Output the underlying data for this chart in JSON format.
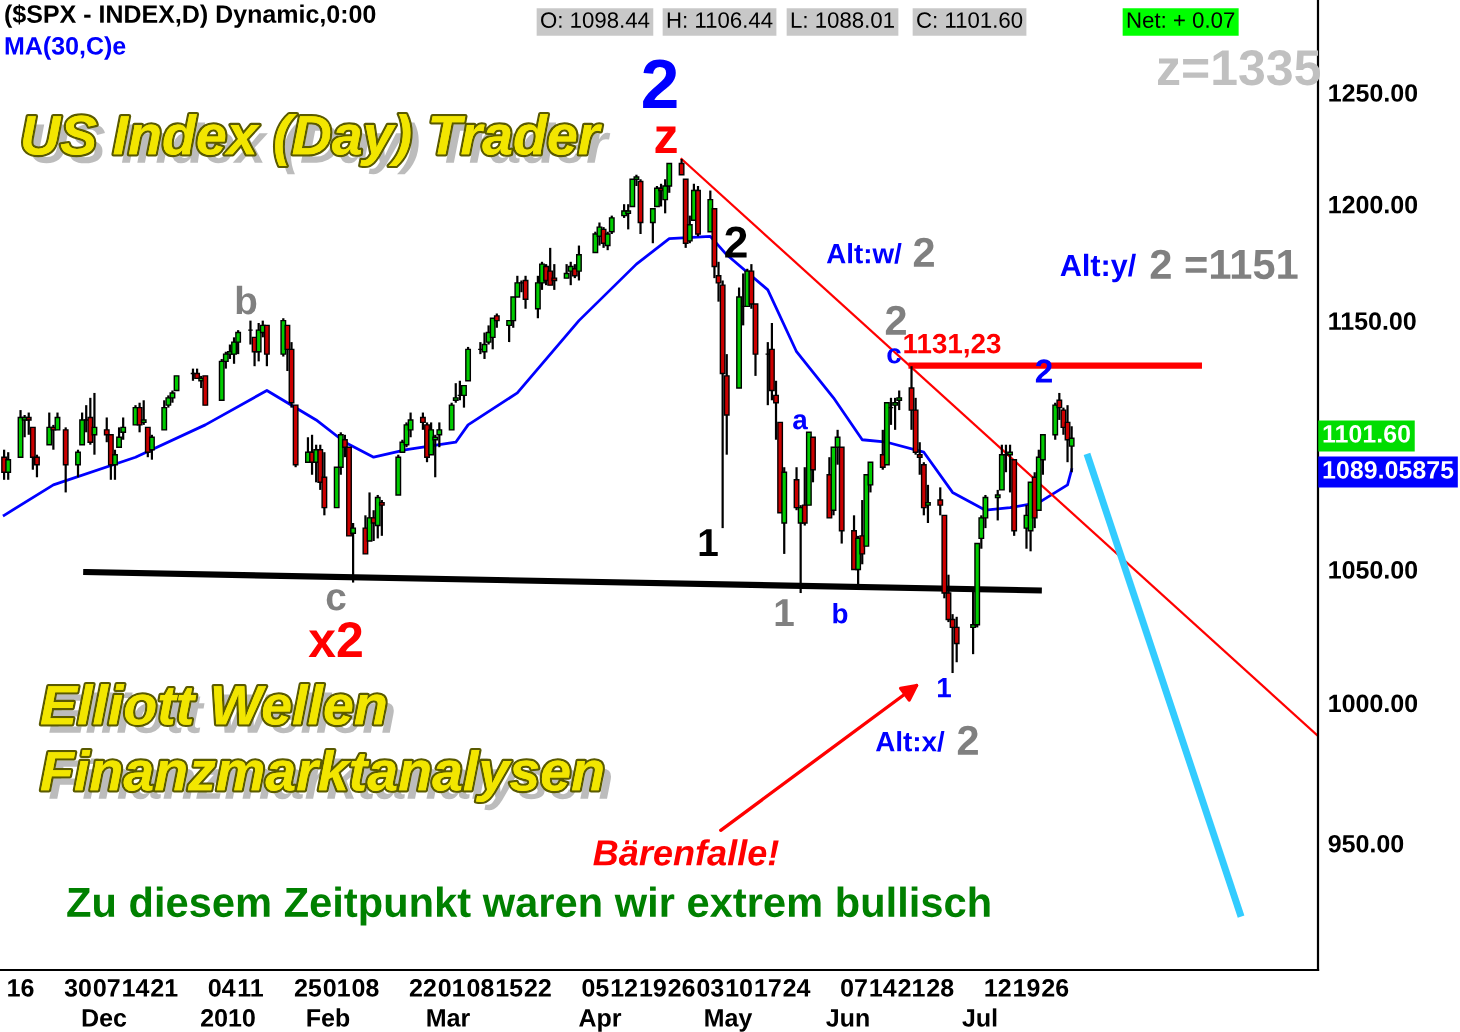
{
  "chart_data": {
    "type": "candlestick",
    "title": "($SPX - INDEX,D) Dynamic,0:00",
    "x": [
      "2009-11-12",
      "2009-11-13",
      "2009-11-16",
      "2009-11-17",
      "2009-11-18",
      "2009-11-19",
      "2009-11-20",
      "2009-11-23",
      "2009-11-24",
      "2009-11-25",
      "2009-11-27",
      "2009-11-30",
      "2009-12-01",
      "2009-12-02",
      "2009-12-03",
      "2009-12-04",
      "2009-12-07",
      "2009-12-08",
      "2009-12-09",
      "2009-12-10",
      "2009-12-11",
      "2009-12-14",
      "2009-12-15",
      "2009-12-16",
      "2009-12-17",
      "2009-12-18",
      "2009-12-21",
      "2009-12-22",
      "2009-12-23",
      "2009-12-24",
      "2009-12-28",
      "2009-12-29",
      "2009-12-30",
      "2009-12-31",
      "2010-01-04",
      "2010-01-05",
      "2010-01-06",
      "2010-01-07",
      "2010-01-08",
      "2010-01-11",
      "2010-01-12",
      "2010-01-13",
      "2010-01-14",
      "2010-01-15",
      "2010-01-19",
      "2010-01-20",
      "2010-01-21",
      "2010-01-22",
      "2010-01-25",
      "2010-01-26",
      "2010-01-27",
      "2010-01-28",
      "2010-01-29",
      "2010-02-01",
      "2010-02-02",
      "2010-02-03",
      "2010-02-04",
      "2010-02-05",
      "2010-02-08",
      "2010-02-09",
      "2010-02-10",
      "2010-02-11",
      "2010-02-12",
      "2010-02-16",
      "2010-02-17",
      "2010-02-18",
      "2010-02-19",
      "2010-02-22",
      "2010-02-23",
      "2010-02-24",
      "2010-02-25",
      "2010-02-26",
      "2010-03-01",
      "2010-03-02",
      "2010-03-03",
      "2010-03-04",
      "2010-03-05",
      "2010-03-08",
      "2010-03-09",
      "2010-03-10",
      "2010-03-11",
      "2010-03-12",
      "2010-03-15",
      "2010-03-16",
      "2010-03-17",
      "2010-03-18",
      "2010-03-19",
      "2010-03-22",
      "2010-03-23",
      "2010-03-24",
      "2010-03-25",
      "2010-03-26",
      "2010-03-29",
      "2010-03-30",
      "2010-03-31",
      "2010-04-01",
      "2010-04-05",
      "2010-04-06",
      "2010-04-07",
      "2010-04-08",
      "2010-04-09",
      "2010-04-12",
      "2010-04-13",
      "2010-04-14",
      "2010-04-15",
      "2010-04-16",
      "2010-04-19",
      "2010-04-20",
      "2010-04-21",
      "2010-04-22",
      "2010-04-23",
      "2010-04-26",
      "2010-04-27",
      "2010-04-28",
      "2010-04-29",
      "2010-04-30",
      "2010-05-03",
      "2010-05-04",
      "2010-05-05",
      "2010-05-06",
      "2010-05-07",
      "2010-05-10",
      "2010-05-11",
      "2010-05-12",
      "2010-05-13",
      "2010-05-14",
      "2010-05-17",
      "2010-05-18",
      "2010-05-19",
      "2010-05-20",
      "2010-05-21",
      "2010-05-24",
      "2010-05-25",
      "2010-05-26",
      "2010-05-27",
      "2010-05-28",
      "2010-06-01",
      "2010-06-02",
      "2010-06-03",
      "2010-06-04",
      "2010-06-07",
      "2010-06-08",
      "2010-06-09",
      "2010-06-10",
      "2010-06-11",
      "2010-06-14",
      "2010-06-15",
      "2010-06-16",
      "2010-06-17",
      "2010-06-18",
      "2010-06-21",
      "2010-06-22",
      "2010-06-23",
      "2010-06-24",
      "2010-06-25",
      "2010-06-28",
      "2010-06-29",
      "2010-06-30",
      "2010-07-01",
      "2010-07-02",
      "2010-07-06",
      "2010-07-07",
      "2010-07-08",
      "2010-07-09",
      "2010-07-12",
      "2010-07-13",
      "2010-07-14",
      "2010-07-15",
      "2010-07-16",
      "2010-07-19",
      "2010-07-20",
      "2010-07-21",
      "2010-07-22",
      "2010-07-23",
      "2010-07-26",
      "2010-07-27",
      "2010-07-28",
      "2010-07-29",
      "2010-07-30"
    ],
    "ohlc": [
      [
        1094,
        1097,
        1085,
        1088
      ],
      [
        1088,
        1096,
        1085,
        1093
      ],
      [
        1094,
        1113,
        1094,
        1110
      ],
      [
        1109,
        1111,
        1102,
        1110
      ],
      [
        1110,
        1112,
        1103,
        1109
      ],
      [
        1106,
        1106,
        1089,
        1094
      ],
      [
        1094,
        1095,
        1086,
        1091
      ],
      [
        1099,
        1112,
        1099,
        1106
      ],
      [
        1106,
        1107,
        1097,
        1105
      ],
      [
        1105,
        1112,
        1105,
        1110
      ],
      [
        1105,
        1106,
        1080,
        1091
      ],
      [
        1091,
        1097,
        1086,
        1096
      ],
      [
        1099,
        1112,
        1099,
        1109
      ],
      [
        1109,
        1115,
        1104,
        1109
      ],
      [
        1110,
        1118,
        1099,
        1100
      ],
      [
        1103,
        1120,
        1095,
        1106
      ],
      [
        1105,
        1110,
        1100,
        1103
      ],
      [
        1103,
        1103,
        1085,
        1091
      ],
      [
        1091,
        1097,
        1085,
        1095
      ],
      [
        1098,
        1106,
        1098,
        1102
      ],
      [
        1104,
        1110,
        1101,
        1106
      ],
      [
        1107,
        1115,
        1107,
        1114
      ],
      [
        1114,
        1116,
        1104,
        1107
      ],
      [
        1108,
        1117,
        1107,
        1109
      ],
      [
        1106,
        1106,
        1094,
        1096
      ],
      [
        1097,
        1103,
        1093,
        1102
      ],
      [
        1105,
        1117,
        1105,
        1114
      ],
      [
        1115,
        1119,
        1114,
        1118
      ],
      [
        1118,
        1121,
        1116,
        1120
      ],
      [
        1121,
        1127,
        1121,
        1127
      ],
      [
        1128,
        1130,
        1125,
        1128
      ],
      [
        1128,
        1130,
        1126,
        1126
      ],
      [
        1125,
        1127,
        1122,
        1126
      ],
      [
        1127,
        1127,
        1115,
        1115
      ],
      [
        1117,
        1134,
        1117,
        1133
      ],
      [
        1133,
        1137,
        1130,
        1136
      ],
      [
        1136,
        1140,
        1134,
        1137
      ],
      [
        1136,
        1143,
        1132,
        1141
      ],
      [
        1141,
        1146,
        1136,
        1145
      ],
      [
        1146,
        1150,
        1140,
        1146
      ],
      [
        1143,
        1143,
        1131,
        1137
      ],
      [
        1137,
        1149,
        1133,
        1146
      ],
      [
        1145,
        1150,
        1143,
        1148
      ],
      [
        1148,
        1148,
        1131,
        1136
      ],
      [
        1136,
        1151,
        1135,
        1150
      ],
      [
        1148,
        1148,
        1129,
        1138
      ],
      [
        1138,
        1141,
        1114,
        1116
      ],
      [
        1115,
        1115,
        1090,
        1091
      ],
      [
        1092,
        1102,
        1092,
        1096
      ],
      [
        1096,
        1103,
        1087,
        1092
      ],
      [
        1092,
        1099,
        1084,
        1097
      ],
      [
        1097,
        1099,
        1081,
        1084
      ],
      [
        1086,
        1096,
        1071,
        1074
      ],
      [
        1074,
        1090,
        1074,
        1090
      ],
      [
        1090,
        1104,
        1087,
        1103
      ],
      [
        1101,
        1103,
        1094,
        1098
      ],
      [
        1098,
        1098,
        1063,
        1063
      ],
      [
        1064,
        1068,
        1045,
        1066
      ],
      [
        1066,
        1071,
        1056,
        1056
      ],
      [
        1061,
        1080,
        1061,
        1070
      ],
      [
        1070,
        1073,
        1061,
        1068
      ],
      [
        1067,
        1079,
        1062,
        1078
      ],
      [
        1076,
        1077,
        1063,
        1075
      ],
      [
        1079,
        1095,
        1079,
        1094
      ],
      [
        1096,
        1101,
        1096,
        1100
      ],
      [
        1099,
        1108,
        1098,
        1107
      ],
      [
        1105,
        1112,
        1102,
        1109
      ],
      [
        1110,
        1112,
        1105,
        1108
      ],
      [
        1107,
        1108,
        1092,
        1094
      ],
      [
        1095,
        1108,
        1095,
        1105
      ],
      [
        1101,
        1103,
        1086,
        1102
      ],
      [
        1103,
        1108,
        1098,
        1105
      ],
      [
        1105,
        1116,
        1105,
        1115
      ],
      [
        1117,
        1124,
        1116,
        1118
      ],
      [
        1119,
        1125,
        1117,
        1119
      ],
      [
        1119,
        1123,
        1114,
        1123
      ],
      [
        1125,
        1139,
        1125,
        1138
      ],
      [
        1138,
        1141,
        1136,
        1138
      ],
      [
        1137,
        1145,
        1134,
        1140
      ],
      [
        1141,
        1148,
        1140,
        1145
      ],
      [
        1143,
        1151,
        1138,
        1151
      ],
      [
        1152,
        1153,
        1147,
        1150
      ],
      [
        1148,
        1150,
        1141,
        1150
      ],
      [
        1150,
        1160,
        1147,
        1160
      ],
      [
        1160,
        1169,
        1160,
        1166
      ],
      [
        1166,
        1167,
        1162,
        1166
      ],
      [
        1167,
        1169,
        1155,
        1159
      ],
      [
        1155,
        1169,
        1151,
        1166
      ],
      [
        1166,
        1175,
        1163,
        1174
      ],
      [
        1173,
        1174,
        1165,
        1167
      ],
      [
        1171,
        1181,
        1165,
        1165
      ],
      [
        1168,
        1174,
        1163,
        1167
      ],
      [
        1168,
        1174,
        1168,
        1170
      ],
      [
        1171,
        1175,
        1165,
        1173
      ],
      [
        1172,
        1174,
        1168,
        1169
      ],
      [
        1171,
        1182,
        1167,
        1178
      ],
      [
        1179,
        1188,
        1179,
        1187
      ],
      [
        1186,
        1192,
        1182,
        1190
      ],
      [
        1189,
        1190,
        1181,
        1183
      ],
      [
        1182,
        1188,
        1180,
        1187
      ],
      [
        1188,
        1195,
        1187,
        1194
      ],
      [
        1195,
        1200,
        1194,
        1197
      ],
      [
        1196,
        1200,
        1189,
        1197
      ],
      [
        1199,
        1211,
        1199,
        1211
      ],
      [
        1211,
        1213,
        1208,
        1212
      ],
      [
        1210,
        1211,
        1187,
        1192
      ],
      [
        1192,
        1198,
        1183,
        1198
      ],
      [
        1199,
        1208,
        1199,
        1207
      ],
      [
        1207,
        1209,
        1199,
        1206
      ],
      [
        1202,
        1211,
        1196,
        1208
      ],
      [
        1208,
        1218,
        1205,
        1218
      ],
      [
        1218,
        1220,
        1213,
        1213
      ],
      [
        1211,
        1211,
        1181,
        1183
      ],
      [
        1184,
        1195,
        1183,
        1191
      ],
      [
        1193,
        1209,
        1193,
        1206
      ],
      [
        1206,
        1208,
        1186,
        1187
      ],
      [
        1188,
        1206,
        1188,
        1202
      ],
      [
        1198,
        1198,
        1168,
        1173
      ],
      [
        1169,
        1175,
        1158,
        1166
      ],
      [
        1165,
        1167,
        1066,
        1128
      ],
      [
        1127,
        1136,
        1095,
        1111
      ],
      [
        1122,
        1164,
        1122,
        1160
      ],
      [
        1156,
        1170,
        1148,
        1156
      ],
      [
        1156,
        1172,
        1156,
        1171
      ],
      [
        1171,
        1174,
        1155,
        1157
      ],
      [
        1157,
        1157,
        1127,
        1136
      ],
      [
        1136,
        1141,
        1115,
        1136
      ],
      [
        1138,
        1149,
        1117,
        1121
      ],
      [
        1119,
        1125,
        1101,
        1116
      ],
      [
        1108,
        1108,
        1072,
        1072
      ],
      [
        1068,
        1090,
        1056,
        1088
      ],
      [
        1085,
        1090,
        1073,
        1074
      ],
      [
        1068,
        1075,
        1041,
        1074
      ],
      [
        1075,
        1090,
        1067,
        1068
      ],
      [
        1075,
        1104,
        1075,
        1104
      ],
      [
        1102,
        1102,
        1084,
        1089
      ],
      [
        1087,
        1094,
        1070,
        1070
      ],
      [
        1073,
        1098,
        1071,
        1098
      ],
      [
        1098,
        1105,
        1091,
        1102
      ],
      [
        1098,
        1098,
        1060,
        1065
      ],
      [
        1065,
        1071,
        1050,
        1050
      ],
      [
        1050,
        1063,
        1043,
        1062
      ],
      [
        1063,
        1077,
        1052,
        1056
      ],
      [
        1059,
        1087,
        1059,
        1087
      ],
      [
        1083,
        1092,
        1080,
        1092
      ],
      [
        1095,
        1105,
        1089,
        1090
      ],
      [
        1091,
        1116,
        1091,
        1116
      ],
      [
        1114,
        1118,
        1107,
        1114
      ],
      [
        1115,
        1118,
        1105,
        1116
      ],
      [
        1117,
        1121,
        1113,
        1118
      ],
      [
        1122,
        1131,
        1105,
        1113
      ],
      [
        1113,
        1118,
        1095,
        1096
      ],
      [
        1095,
        1100,
        1087,
        1094
      ],
      [
        1091,
        1092,
        1071,
        1074
      ],
      [
        1075,
        1083,
        1068,
        1076
      ],
      [
        1077,
        1082,
        1071,
        1075
      ],
      [
        1071,
        1071,
        1039,
        1041
      ],
      [
        1041,
        1048,
        1030,
        1031
      ],
      [
        1031,
        1033,
        1011,
        1028
      ],
      [
        1028,
        1032,
        1015,
        1022
      ],
      [
        1028,
        1043,
        1018,
        1029
      ],
      [
        1029,
        1060,
        1028,
        1060
      ],
      [
        1062,
        1071,
        1058,
        1070
      ],
      [
        1070,
        1079,
        1066,
        1078
      ],
      [
        1078,
        1081,
        1069,
        1079
      ],
      [
        1081,
        1099,
        1081,
        1095
      ],
      [
        1095,
        1099,
        1088,
        1095
      ],
      [
        1095,
        1099,
        1080,
        1096
      ],
      [
        1093,
        1093,
        1063,
        1065
      ],
      [
        1066,
        1075,
        1058,
        1071
      ],
      [
        1065,
        1084,
        1057,
        1084
      ],
      [
        1086,
        1088,
        1066,
        1070
      ],
      [
        1073,
        1097,
        1073,
        1094
      ],
      [
        1093,
        1103,
        1087,
        1103
      ],
      [
        1103,
        1116,
        1101,
        1115
      ],
      [
        1117,
        1120,
        1109,
        1114
      ],
      [
        1113,
        1114,
        1103,
        1106
      ],
      [
        1108,
        1115,
        1092,
        1101
      ],
      [
        1098.44,
        1106.44,
        1088.01,
        1101.6
      ]
    ],
    "series": [
      {
        "type": "line",
        "name": "MA(30,C)e",
        "color": "#0000ff",
        "x": [
          "2009-11-12",
          "2009-11-24",
          "2009-12-14",
          "2009-12-31",
          "2010-01-15",
          "2010-01-27",
          "2010-02-03",
          "2010-02-10",
          "2010-02-18",
          "2010-03-02",
          "2010-03-05",
          "2010-03-17",
          "2010-04-01",
          "2010-04-15",
          "2010-04-23",
          "2010-05-03",
          "2010-05-07",
          "2010-05-17",
          "2010-05-24",
          "2010-06-02",
          "2010-06-09",
          "2010-06-15",
          "2010-06-24",
          "2010-07-01",
          "2010-07-09",
          "2010-07-15",
          "2010-07-22",
          "2010-07-29",
          "2010-07-30"
        ],
        "values": [
          1071,
          1083,
          1094,
          1107,
          1121,
          1109,
          1100,
          1094,
          1097,
          1100,
          1107,
          1120,
          1150,
          1174,
          1185,
          1186,
          1178,
          1163,
          1137,
          1118,
          1101,
          1100,
          1096,
          1080,
          1073,
          1074,
          1076,
          1083,
          1089.05875
        ]
      },
      {
        "type": "line",
        "color": "#000000",
        "x": [
          "2009-12-02",
          "2010-07-22"
        ],
        "values": [
          1049,
          1042
        ]
      },
      {
        "type": "line",
        "color": "#ff0000",
        "x": [
          "2010-04-26",
          "2010-09-28"
        ],
        "values": [
          1220,
          988
        ]
      },
      {
        "type": "line",
        "color": "#ff0000",
        "x": [
          "2010-06-21",
          "2010-08-30"
        ],
        "values": [
          1131.23,
          1131.23
        ]
      },
      {
        "type": "line",
        "color": "#33ccff",
        "x": [
          "2010-08-03",
          "2010-09-09"
        ],
        "values": [
          1094,
          926
        ]
      }
    ],
    "legend": "top left",
    "log": "y",
    "xlim": [
      "2009-11-11",
      "2010-09-28"
    ],
    "xticks": [
      {
        "value": "2009-11-16",
        "label": "16"
      },
      {
        "value": "2009-11-30",
        "label": "30"
      },
      {
        "value": "2009-12-07",
        "label": "07"
      },
      {
        "value": "2009-12-14",
        "label": "14"
      },
      {
        "value": "2009-12-21",
        "label": "21"
      },
      {
        "value": "2010-01-04",
        "label": "04"
      },
      {
        "value": "2010-01-11",
        "label": "11"
      },
      {
        "value": "2010-01-25",
        "label": "25"
      },
      {
        "value": "2010-02-01",
        "label": "01"
      },
      {
        "value": "2010-02-08",
        "label": "08"
      },
      {
        "value": "2010-02-22",
        "label": "22"
      },
      {
        "value": "2010-03-01",
        "label": "01"
      },
      {
        "value": "2010-03-08",
        "label": "08"
      },
      {
        "value": "2010-03-15",
        "label": "15"
      },
      {
        "value": "2010-03-22",
        "label": "22"
      },
      {
        "value": "2010-04-05",
        "label": "05"
      },
      {
        "value": "2010-04-12",
        "label": "12"
      },
      {
        "value": "2010-04-19",
        "label": "19"
      },
      {
        "value": "2010-04-26",
        "label": "26"
      },
      {
        "value": "2010-05-03",
        "label": "03"
      },
      {
        "value": "2010-05-10",
        "label": "10"
      },
      {
        "value": "2010-05-17",
        "label": "17"
      },
      {
        "value": "2010-05-24",
        "label": "24"
      },
      {
        "value": "2010-06-07",
        "label": "07"
      },
      {
        "value": "2010-06-14",
        "label": "14"
      },
      {
        "value": "2010-06-21",
        "label": "21"
      },
      {
        "value": "2010-06-28",
        "label": "28"
      },
      {
        "value": "2010-07-12",
        "label": "12"
      },
      {
        "value": "2010-07-19",
        "label": "19"
      },
      {
        "value": "2010-07-26",
        "label": "26"
      }
    ],
    "ylim": [
      907,
      1293
    ],
    "yticks": [
      {
        "value": 950,
        "label": "950.00"
      },
      {
        "value": 1000,
        "label": "1000.00"
      },
      {
        "value": 1050,
        "label": "1050.00"
      },
      {
        "value": 1150,
        "label": "1150.00"
      },
      {
        "value": 1200,
        "label": "1200.00"
      },
      {
        "value": 1250,
        "label": "1250.00"
      }
    ],
    "annotations": [
      "US Index (Day) Trader",
      "Elliott Wellen",
      "Finanzmarktanalysen",
      "Zu diesem Zeitpunkt waren wir extrem bullisch",
      "z=1335",
      "O: 1098.44",
      "H: 1106.44",
      "L: 1088.01",
      "C: 1101.60",
      "Net: + 0.07",
      "1101.60",
      "1089.05875",
      "Bärenfalle!",
      "2",
      "z",
      "b",
      "c",
      "x2",
      "2",
      "1",
      "1",
      "a",
      "b",
      "2",
      "c",
      "1131,23",
      "2",
      "Alt:w/",
      "2",
      "Alt:y/",
      "2 =1151",
      "1",
      "Alt:x/",
      "2",
      "Dec",
      "2010",
      "Feb",
      "Mar",
      "Apr",
      "May",
      "Jun",
      "Jul"
    ]
  }
}
